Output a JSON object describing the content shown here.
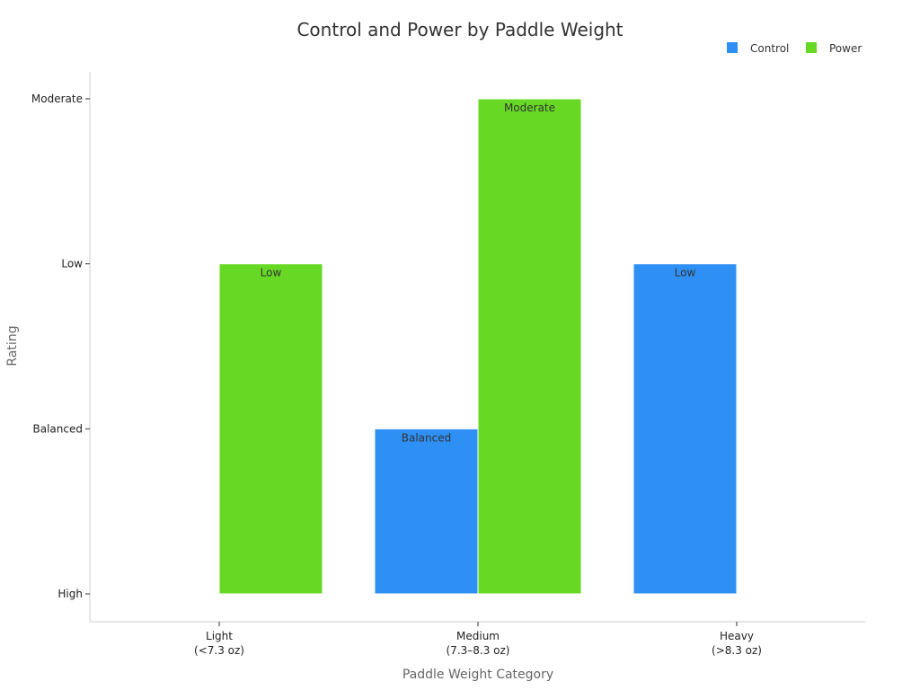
{
  "chart_data": {
    "type": "bar",
    "title": "Control and Power by Paddle Weight",
    "xlabel": "Paddle Weight Category",
    "ylabel": "Rating",
    "categories": [
      [
        "Light",
        "(<7.3 oz)"
      ],
      [
        "Medium",
        "(7.3–8.3 oz)"
      ],
      [
        "Heavy",
        "(>8.3 oz)"
      ]
    ],
    "y_levels": [
      "High",
      "Balanced",
      "Low",
      "Moderate"
    ],
    "series": [
      {
        "name": "Control",
        "color": "#2e90f5",
        "values": [
          null,
          1,
          2
        ],
        "labels": [
          "",
          "Balanced",
          "Low"
        ]
      },
      {
        "name": "Power",
        "color": "#67d925",
        "values": [
          2,
          3,
          null
        ],
        "labels": [
          "Low",
          "Moderate",
          ""
        ]
      }
    ],
    "ylim": [
      0,
      3
    ],
    "grid": false,
    "legend_position": "top-right"
  }
}
